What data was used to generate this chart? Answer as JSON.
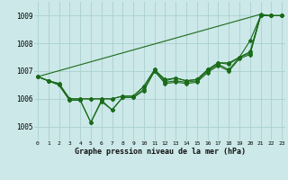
{
  "title": "Graphe pression niveau de la mer (hPa)",
  "background_color": "#cce8e8",
  "grid_color": "#aacfcf",
  "line_color": "#1a6b1a",
  "ylim": [
    1004.5,
    1009.5
  ],
  "xlim": [
    -0.3,
    23.3
  ],
  "yticks": [
    1005,
    1006,
    1007,
    1008,
    1009
  ],
  "xticks": [
    0,
    1,
    2,
    3,
    4,
    5,
    6,
    7,
    8,
    9,
    10,
    11,
    12,
    13,
    14,
    15,
    16,
    17,
    18,
    19,
    20,
    21,
    22,
    23
  ],
  "series": [
    [
      1006.8,
      1006.65,
      1006.5,
      1005.95,
      1005.95,
      1005.15,
      1005.9,
      1005.6,
      1006.05,
      1006.05,
      1006.3,
      1007.0,
      1006.55,
      1006.6,
      1006.55,
      1006.6,
      1006.95,
      1007.2,
      1007.0,
      1007.45,
      1007.6,
      1009.0,
      1009.0,
      1009.0
    ],
    [
      1006.8,
      1006.65,
      1006.5,
      1005.95,
      1005.95,
      1005.15,
      1005.95,
      1005.6,
      1006.05,
      1006.05,
      1006.35,
      1007.0,
      1006.6,
      1006.65,
      1006.6,
      1006.65,
      1007.0,
      1007.25,
      1007.05,
      1007.5,
      1007.65,
      1009.0,
      1009.0,
      1009.0
    ],
    [
      1006.8,
      1006.65,
      1006.55,
      1006.0,
      1006.0,
      1006.0,
      1006.0,
      1006.0,
      1006.1,
      1006.1,
      1006.45,
      1007.05,
      1006.65,
      1006.75,
      1006.65,
      1006.7,
      1007.05,
      1007.3,
      1007.3,
      1007.5,
      1008.1,
      1009.0,
      1009.0,
      1009.0
    ],
    [
      1006.8,
      1006.65,
      1006.55,
      1006.0,
      1006.0,
      1006.0,
      1006.0,
      1006.0,
      1006.1,
      1006.1,
      1006.45,
      1007.05,
      1006.7,
      1006.75,
      1006.65,
      1006.7,
      1007.05,
      1007.3,
      1007.25,
      1007.5,
      1007.7,
      1009.05,
      1009.0,
      1009.0
    ]
  ],
  "straight_series": [
    [
      1006.8,
      1009.05
    ],
    [
      0,
      21
    ]
  ]
}
